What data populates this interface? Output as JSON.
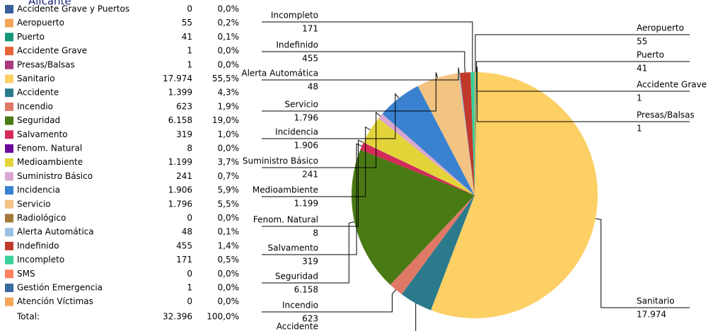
{
  "chart_data": {
    "type": "pie",
    "title": "Alicante",
    "categories": [
      "Accidente Grave y Puertos",
      "Aeropuerto",
      "Puerto",
      "Accidente Grave",
      "Presas/Balsas",
      "Sanitario",
      "Accidente",
      "Incendio",
      "Seguridad",
      "Salvamento",
      "Fenom. Natural",
      "Medioambiente",
      "Suministro Básico",
      "Incidencia",
      "Servicio",
      "Radiológico",
      "Alerta Automática",
      "Indefinido",
      "Incompleto",
      "SMS",
      "Gestión Emergencia",
      "Atención Víctimas"
    ],
    "values": [
      0,
      55,
      41,
      1,
      1,
      17974,
      1399,
      623,
      6158,
      319,
      8,
      1199,
      241,
      1906,
      1796,
      0,
      48,
      455,
      171,
      0,
      1,
      0
    ],
    "value_labels": [
      "0",
      "55",
      "41",
      "1",
      "1",
      "17.974",
      "1.399",
      "623",
      "6.158",
      "319",
      "8",
      "1.199",
      "241",
      "1.906",
      "1.796",
      "0",
      "48",
      "455",
      "171",
      "0",
      "1",
      "0"
    ],
    "percents": [
      0.0,
      0.2,
      0.1,
      0.0,
      0.0,
      55.5,
      4.3,
      1.9,
      19.0,
      1.0,
      0.0,
      3.7,
      0.7,
      5.9,
      5.5,
      0.0,
      0.1,
      1.4,
      0.5,
      0.0,
      0.0,
      0.0
    ],
    "percent_labels": [
      "0,0%",
      "0,2%",
      "0,1%",
      "0,0%",
      "0,0%",
      "55,5%",
      "4,3%",
      "1,9%",
      "19,0%",
      "1,0%",
      "0,0%",
      "3,7%",
      "0,7%",
      "5,9%",
      "5,5%",
      "0,0%",
      "0,1%",
      "1,4%",
      "0,5%",
      "0,0%",
      "0,0%",
      "0,0%"
    ],
    "colors": [
      "#3a5f9a",
      "#f5a65b",
      "#16967a",
      "#e8623a",
      "#a83a7a",
      "#fdd065",
      "#2b7a8c",
      "#e07866",
      "#4a7a14",
      "#d42a5a",
      "#6a0a9a",
      "#e3d43a",
      "#d9a6d0",
      "#3a82d0",
      "#f3c382",
      "#a37a3a",
      "#9ac0e6",
      "#c0392b",
      "#3ad09a",
      "#ff8060",
      "#3a6aa0",
      "#f5a65b"
    ],
    "total": {
      "label": "Total:",
      "value": 32396,
      "value_label": "32.396",
      "percent": 100.0,
      "percent_label": "100,0%"
    }
  }
}
